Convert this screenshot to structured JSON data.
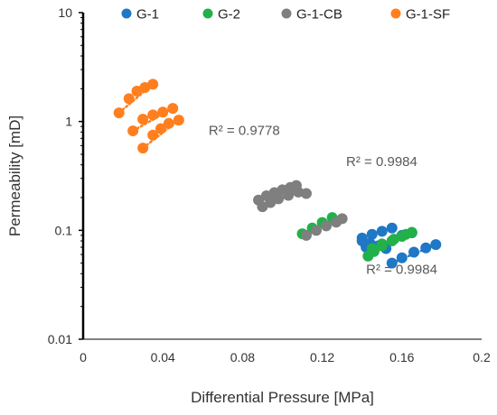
{
  "chart_data": {
    "type": "scatter",
    "xlabel": "Differential Pressure [MPa]",
    "ylabel": "Permeability [mD]",
    "xlim": [
      0,
      0.2
    ],
    "ylim": [
      0.01,
      10
    ],
    "yscale": "log",
    "x_ticks": [
      "0",
      "0.04",
      "0.08",
      "0.12",
      "0.16",
      "0.2"
    ],
    "y_ticks": [
      "0.01",
      "0.1",
      "1",
      "10"
    ],
    "grid": false,
    "legend_position": "top",
    "series": [
      {
        "name": "G-1",
        "color": "#1f77c6",
        "points": [
          [
            0.14,
            0.085
          ],
          [
            0.145,
            0.092
          ],
          [
            0.15,
            0.098
          ],
          [
            0.155,
            0.105
          ],
          [
            0.16,
            0.09
          ],
          [
            0.165,
            0.095
          ],
          [
            0.14,
            0.08
          ],
          [
            0.144,
            0.076
          ],
          [
            0.148,
            0.072
          ],
          [
            0.152,
            0.068
          ],
          [
            0.142,
            0.07
          ],
          [
            0.155,
            0.05
          ],
          [
            0.16,
            0.056
          ],
          [
            0.166,
            0.063
          ],
          [
            0.172,
            0.069
          ],
          [
            0.177,
            0.074
          ]
        ]
      },
      {
        "name": "G-2",
        "color": "#22b04b",
        "points": [
          [
            0.11,
            0.093
          ],
          [
            0.115,
            0.105
          ],
          [
            0.12,
            0.118
          ],
          [
            0.125,
            0.131
          ],
          [
            0.143,
            0.058
          ],
          [
            0.146,
            0.064
          ],
          [
            0.15,
            0.072
          ],
          [
            0.155,
            0.08
          ],
          [
            0.16,
            0.088
          ],
          [
            0.165,
            0.096
          ],
          [
            0.145,
            0.068
          ],
          [
            0.15,
            0.075
          ],
          [
            0.156,
            0.083
          ],
          [
            0.162,
            0.092
          ]
        ]
      },
      {
        "name": "G-1-CB",
        "color": "#7f7f7f",
        "points": [
          [
            0.09,
            0.165
          ],
          [
            0.094,
            0.18
          ],
          [
            0.098,
            0.195
          ],
          [
            0.103,
            0.21
          ],
          [
            0.108,
            0.225
          ],
          [
            0.088,
            0.19
          ],
          [
            0.092,
            0.208
          ],
          [
            0.096,
            0.222
          ],
          [
            0.1,
            0.236
          ],
          [
            0.104,
            0.248
          ],
          [
            0.107,
            0.258
          ],
          [
            0.112,
            0.218
          ],
          [
            0.112,
            0.09
          ],
          [
            0.117,
            0.1
          ],
          [
            0.122,
            0.11
          ],
          [
            0.127,
            0.119
          ],
          [
            0.13,
            0.128
          ]
        ]
      },
      {
        "name": "G-1-SF",
        "color": "#ff7f1e",
        "points": [
          [
            0.018,
            1.2
          ],
          [
            0.023,
            1.62
          ],
          [
            0.027,
            1.9
          ],
          [
            0.031,
            2.05
          ],
          [
            0.035,
            2.2
          ],
          [
            0.025,
            0.82
          ],
          [
            0.03,
            1.05
          ],
          [
            0.035,
            1.15
          ],
          [
            0.04,
            1.22
          ],
          [
            0.045,
            1.32
          ],
          [
            0.03,
            0.57
          ],
          [
            0.035,
            0.75
          ],
          [
            0.039,
            0.86
          ],
          [
            0.043,
            0.96
          ],
          [
            0.048,
            1.03
          ]
        ]
      }
    ],
    "trendlines": [
      {
        "series": "G-1-SF",
        "style": "dotted",
        "from": [
          0.018,
          1.2
        ],
        "to": [
          0.035,
          2.2
        ]
      },
      {
        "series": "G-1-SF",
        "style": "dotted",
        "from": [
          0.025,
          0.82
        ],
        "to": [
          0.045,
          1.32
        ]
      },
      {
        "series": "G-1-SF",
        "style": "dotted",
        "from": [
          0.03,
          0.57
        ],
        "to": [
          0.048,
          1.03
        ]
      },
      {
        "series": "G-1-CB",
        "style": "dotted",
        "from": [
          0.09,
          0.165
        ],
        "to": [
          0.108,
          0.225
        ]
      },
      {
        "series": "G-1-CB",
        "style": "dotted",
        "from": [
          0.112,
          0.09
        ],
        "to": [
          0.13,
          0.128
        ]
      },
      {
        "series": "G-1",
        "style": "dotted",
        "from": [
          0.155,
          0.05
        ],
        "to": [
          0.177,
          0.074
        ]
      }
    ],
    "annotations": [
      {
        "text": "R² = 0.9778",
        "x": 0.063,
        "y": 0.75
      },
      {
        "text": "R² = 0.9984",
        "x": 0.132,
        "y": 0.39
      },
      {
        "text": "R² = 0.9984",
        "x": 0.142,
        "y": 0.04
      }
    ]
  }
}
